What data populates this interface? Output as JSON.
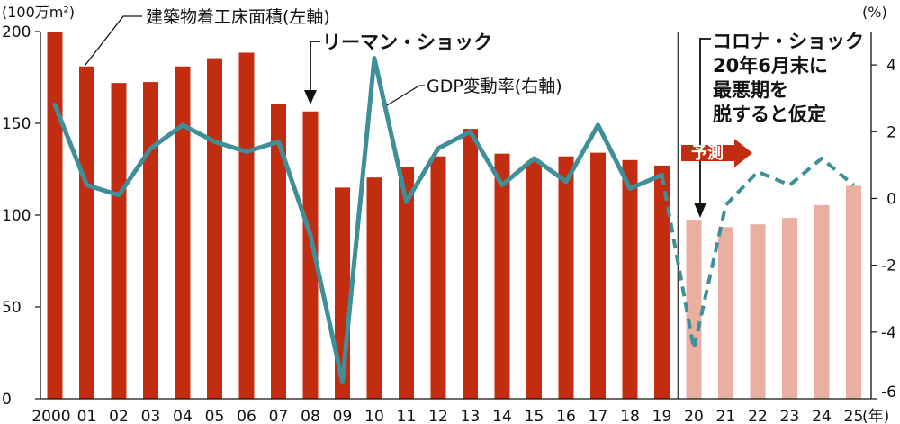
{
  "chart_data": {
    "type": "bar",
    "categories": [
      "2000",
      "01",
      "02",
      "03",
      "04",
      "05",
      "06",
      "07",
      "08",
      "09",
      "10",
      "11",
      "12",
      "13",
      "14",
      "15",
      "16",
      "17",
      "18",
      "19",
      "20",
      "21",
      "22",
      "23",
      "24",
      "25"
    ],
    "x_unit": "(年)",
    "forecast_from": "20",
    "series": [
      {
        "name": "建築物着工床面積(左軸)",
        "type": "bar",
        "axis": "left",
        "values": [
          200,
          181,
          172,
          172.5,
          181,
          185.5,
          188.5,
          160.5,
          156.5,
          115,
          120.5,
          126,
          132,
          147,
          133.5,
          129.5,
          132,
          134,
          130,
          127,
          97.5,
          93.5,
          95,
          98.5,
          105.5,
          116
        ],
        "color": "#c22c10",
        "forecast_color": "#e9afa0"
      },
      {
        "name": "GDP変動率(右軸)",
        "type": "line",
        "axis": "right",
        "values": [
          2.8,
          0.4,
          0.1,
          1.5,
          2.2,
          1.7,
          1.4,
          1.7,
          -1.1,
          -5.5,
          4.2,
          -0.1,
          1.5,
          2.0,
          0.4,
          1.2,
          0.5,
          2.2,
          0.3,
          0.7,
          -4.5,
          -0.2,
          0.8,
          0.4,
          1.2,
          0.4
        ],
        "color": "#3f8f98"
      }
    ],
    "y_left": {
      "unit": "(100万m²)",
      "ylim": [
        0,
        200
      ],
      "ticks": [
        "0",
        "50",
        "100",
        "150",
        "200"
      ]
    },
    "y_right": {
      "unit": "(%)",
      "ylim": [
        -6,
        5
      ],
      "ticks": [
        "-6",
        "-4",
        "-2",
        "0",
        "2",
        "4"
      ]
    },
    "annotations": {
      "lehman": "リーマン・ショック",
      "corona": [
        "コロナ・ショック",
        "20年6月末に",
        "最悪期を",
        "脱すると仮定"
      ],
      "forecast": "予測"
    },
    "legend_placement": "inline labels"
  }
}
